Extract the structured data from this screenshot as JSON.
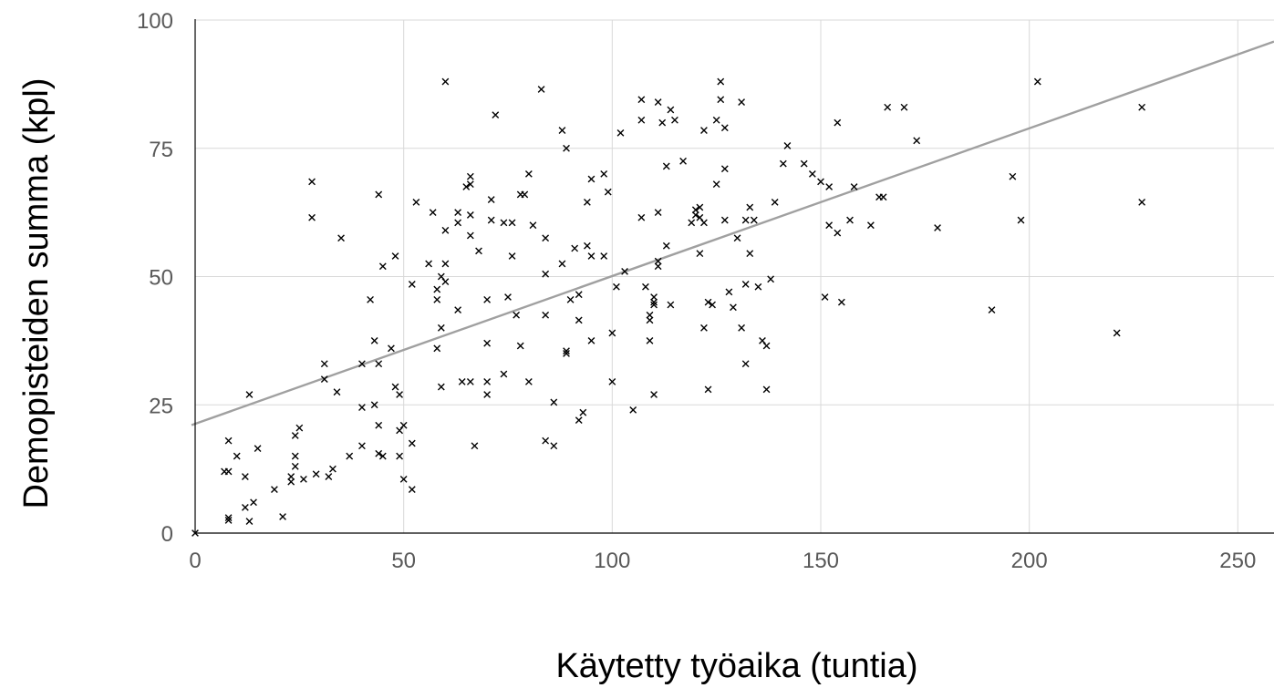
{
  "chart_data": {
    "type": "scatter",
    "title": "",
    "xlabel": "Käytetty työaika (tuntia)",
    "ylabel": "Demopisteiden summa (kpl)",
    "xlim": [
      0,
      260
    ],
    "ylim": [
      0,
      100
    ],
    "xticks": [
      "0",
      "50",
      "100",
      "150",
      "200",
      "250"
    ],
    "yticks": [
      "0",
      "25",
      "50",
      "75",
      "100"
    ],
    "grid": true,
    "legend": "none",
    "marker": "x",
    "marker_color": "#000000",
    "trendline": {
      "intercept": 21.3,
      "slope": 0.288,
      "color": "#a0a0a0"
    },
    "series": [
      {
        "points": [
          [
            0,
            0
          ],
          [
            7,
            12
          ],
          [
            8,
            12
          ],
          [
            8,
            18
          ],
          [
            8,
            3
          ],
          [
            8,
            2.5
          ],
          [
            10,
            15
          ],
          [
            12,
            11
          ],
          [
            12,
            5
          ],
          [
            13,
            27
          ],
          [
            13,
            2.3
          ],
          [
            14,
            6
          ],
          [
            15,
            16.5
          ],
          [
            19,
            8.5
          ],
          [
            21,
            3.2
          ],
          [
            23,
            10
          ],
          [
            23,
            11
          ],
          [
            24,
            19
          ],
          [
            24,
            13
          ],
          [
            24,
            15
          ],
          [
            25,
            20.5
          ],
          [
            26,
            10.5
          ],
          [
            28,
            61.5
          ],
          [
            28,
            68.5
          ],
          [
            29,
            11.5
          ],
          [
            31,
            33
          ],
          [
            31,
            30
          ],
          [
            32,
            11
          ],
          [
            33,
            12.5
          ],
          [
            34,
            27.5
          ],
          [
            35,
            57.5
          ],
          [
            37,
            15
          ],
          [
            40,
            33
          ],
          [
            40,
            17
          ],
          [
            40,
            24.5
          ],
          [
            42,
            45.5
          ],
          [
            43,
            37.5
          ],
          [
            43,
            25
          ],
          [
            44,
            15.5
          ],
          [
            44,
            33
          ],
          [
            44,
            66
          ],
          [
            44,
            21
          ],
          [
            45,
            52
          ],
          [
            45,
            15
          ],
          [
            47,
            36
          ],
          [
            48,
            28.5
          ],
          [
            48,
            54
          ],
          [
            49,
            20
          ],
          [
            49,
            15
          ],
          [
            49,
            27
          ],
          [
            50,
            10.5
          ],
          [
            50,
            21
          ],
          [
            52,
            48.5
          ],
          [
            52,
            8.5
          ],
          [
            52,
            17.5
          ],
          [
            53,
            64.5
          ],
          [
            56,
            52.5
          ],
          [
            57,
            62.5
          ],
          [
            58,
            36
          ],
          [
            58,
            47.5
          ],
          [
            58,
            45.5
          ],
          [
            59,
            50
          ],
          [
            59,
            40
          ],
          [
            59,
            28.5
          ],
          [
            60,
            49
          ],
          [
            60,
            52.5
          ],
          [
            60,
            59
          ],
          [
            60,
            88
          ],
          [
            63,
            62.5
          ],
          [
            63,
            43.5
          ],
          [
            63,
            60.5
          ],
          [
            64,
            29.5
          ],
          [
            65,
            67.5
          ],
          [
            66,
            29.5
          ],
          [
            66,
            58
          ],
          [
            66,
            62
          ],
          [
            66,
            68
          ],
          [
            66,
            69.5
          ],
          [
            67,
            17
          ],
          [
            68,
            55
          ],
          [
            70,
            45.5
          ],
          [
            70,
            27
          ],
          [
            70,
            29.5
          ],
          [
            70,
            37
          ],
          [
            71,
            65
          ],
          [
            71,
            61
          ],
          [
            72,
            81.5
          ],
          [
            74,
            60.5
          ],
          [
            74,
            31
          ],
          [
            75,
            46
          ],
          [
            76,
            60.5
          ],
          [
            76,
            54
          ],
          [
            77,
            42.5
          ],
          [
            78,
            36.5
          ],
          [
            78,
            66
          ],
          [
            79,
            66
          ],
          [
            80,
            29.5
          ],
          [
            80,
            70
          ],
          [
            81,
            60
          ],
          [
            83,
            86.5
          ],
          [
            84,
            57.5
          ],
          [
            84,
            18
          ],
          [
            84,
            50.5
          ],
          [
            84,
            42.5
          ],
          [
            86,
            25.5
          ],
          [
            86,
            17
          ],
          [
            88,
            52.5
          ],
          [
            88,
            78.5
          ],
          [
            89,
            75
          ],
          [
            89,
            35.5
          ],
          [
            89,
            35
          ],
          [
            90,
            45.5
          ],
          [
            91,
            55.5
          ],
          [
            92,
            46.5
          ],
          [
            92,
            41.5
          ],
          [
            92,
            22
          ],
          [
            93,
            23.5
          ],
          [
            94,
            64.5
          ],
          [
            94,
            56
          ],
          [
            95,
            69
          ],
          [
            95,
            37.5
          ],
          [
            95,
            54
          ],
          [
            98,
            54
          ],
          [
            98,
            70
          ],
          [
            99,
            66.5
          ],
          [
            100,
            39
          ],
          [
            100,
            29.5
          ],
          [
            101,
            48
          ],
          [
            102,
            78
          ],
          [
            103,
            51
          ],
          [
            105,
            24
          ],
          [
            107,
            61.5
          ],
          [
            107,
            80.5
          ],
          [
            107,
            84.5
          ],
          [
            108,
            48
          ],
          [
            109,
            37.5
          ],
          [
            109,
            41.5
          ],
          [
            109,
            42.5
          ],
          [
            110,
            27
          ],
          [
            110,
            45
          ],
          [
            110,
            44.5
          ],
          [
            110,
            46
          ],
          [
            111,
            84
          ],
          [
            111,
            62.5
          ],
          [
            111,
            52
          ],
          [
            111,
            53
          ],
          [
            112,
            80
          ],
          [
            113,
            71.5
          ],
          [
            113,
            56
          ],
          [
            114,
            82.5
          ],
          [
            114,
            44.5
          ],
          [
            115,
            80.5
          ],
          [
            117,
            72.5
          ],
          [
            119,
            60.5
          ],
          [
            120,
            62
          ],
          [
            120,
            63
          ],
          [
            121,
            61.5
          ],
          [
            121,
            63.5
          ],
          [
            121,
            54.5
          ],
          [
            122,
            78.5
          ],
          [
            122,
            40
          ],
          [
            122,
            60.5
          ],
          [
            123,
            28
          ],
          [
            123,
            45
          ],
          [
            124,
            44.5
          ],
          [
            125,
            80.5
          ],
          [
            125,
            68
          ],
          [
            126,
            88
          ],
          [
            126,
            84.5
          ],
          [
            127,
            71
          ],
          [
            127,
            61
          ],
          [
            127,
            79
          ],
          [
            128,
            47
          ],
          [
            129,
            44
          ],
          [
            130,
            57.5
          ],
          [
            131,
            84
          ],
          [
            131,
            40
          ],
          [
            132,
            33
          ],
          [
            132,
            61
          ],
          [
            132,
            48.5
          ],
          [
            133,
            54.5
          ],
          [
            133,
            63.5
          ],
          [
            134,
            61
          ],
          [
            135,
            48
          ],
          [
            136,
            37.5
          ],
          [
            137,
            28
          ],
          [
            137,
            36.5
          ],
          [
            138,
            49.5
          ],
          [
            139,
            64.5
          ],
          [
            141,
            72
          ],
          [
            142,
            75.5
          ],
          [
            146,
            72
          ],
          [
            148,
            70
          ],
          [
            150,
            68.5
          ],
          [
            151,
            46
          ],
          [
            152,
            67.5
          ],
          [
            152,
            60
          ],
          [
            154,
            80
          ],
          [
            154,
            58.5
          ],
          [
            155,
            45
          ],
          [
            157,
            61
          ],
          [
            158,
            67.5
          ],
          [
            162,
            60
          ],
          [
            164,
            65.5
          ],
          [
            165,
            65.5
          ],
          [
            166,
            83
          ],
          [
            170,
            83
          ],
          [
            173,
            76.5
          ],
          [
            178,
            59.5
          ],
          [
            191,
            43.5
          ],
          [
            196,
            69.5
          ],
          [
            198,
            61
          ],
          [
            202,
            88
          ],
          [
            221,
            39
          ],
          [
            227,
            83
          ],
          [
            227,
            64.5
          ]
        ]
      }
    ]
  }
}
